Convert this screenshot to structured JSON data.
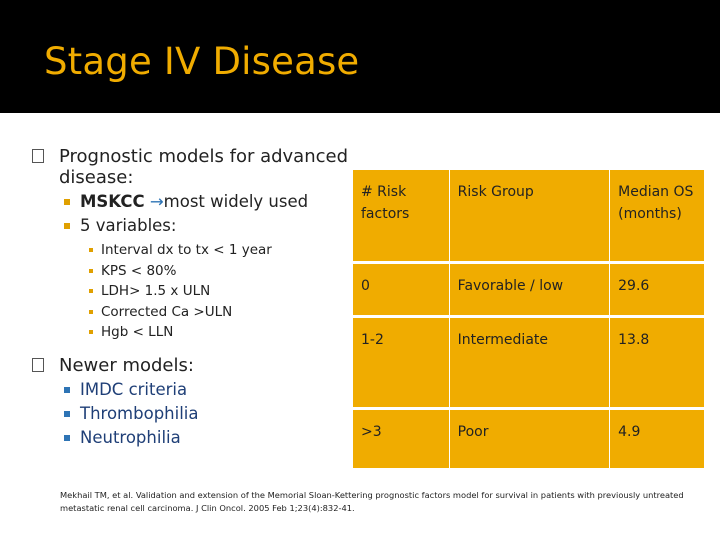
{
  "slide": {
    "title": "Stage IV Disease",
    "accent_color": "#f0ac00",
    "header_color": "#000000"
  },
  "bullets": {
    "prognostic_heading": "Prognostic models for advanced disease:",
    "mskcc_label": "MSKCC",
    "mskcc_arrow": "→",
    "mskcc_text": "most widely used",
    "variables_label": "5 variables:",
    "variables": [
      "Interval dx to tx < 1 year",
      "KPS < 80%",
      "LDH> 1.5 x ULN",
      "Corrected Ca >ULN",
      "Hgb < LLN"
    ],
    "newer_heading": "Newer models:",
    "newer_items": [
      "IMDC criteria",
      "Thrombophilia",
      "Neutrophilia"
    ]
  },
  "table": {
    "headers": [
      "# Risk factors",
      "Risk Group",
      "Median OS (months)"
    ],
    "rows": [
      [
        "0",
        "Favorable / low",
        "29.6"
      ],
      [
        "1-2",
        "Intermediate",
        "13.8"
      ],
      [
        ">3",
        "Poor",
        "4.9"
      ]
    ]
  },
  "reference": "Mekhail TM, et al. Validation and extension of the Memorial Sloan-Kettering prognostic factors model for survival in patients with previously untreated metastatic renal cell carcinoma. J Clin Oncol. 2005 Feb 1;23(4):832-41."
}
